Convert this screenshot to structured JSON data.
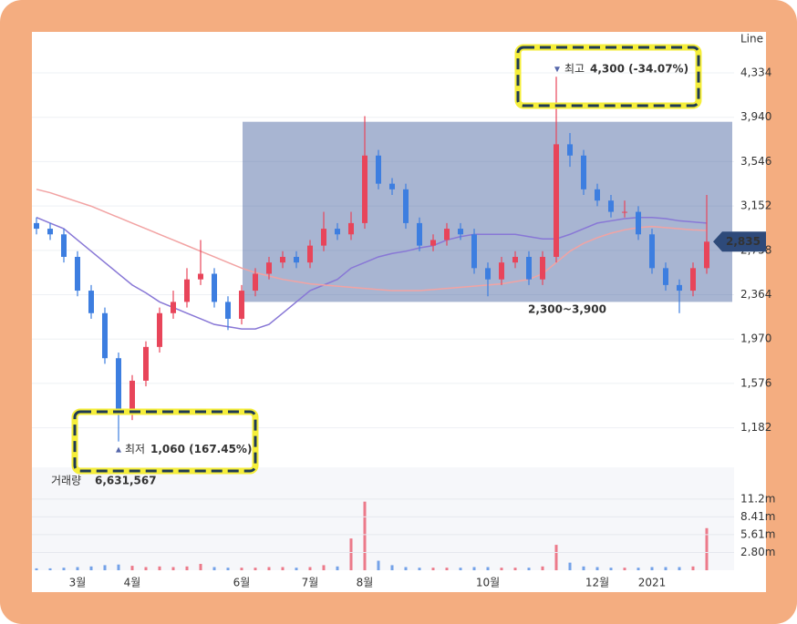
{
  "chart_data": {
    "type": "candlestick",
    "mode_label": "Line",
    "categories": [
      null,
      null,
      null,
      "3월",
      null,
      null,
      null,
      "4월",
      null,
      null,
      null,
      null,
      null,
      null,
      null,
      "6월",
      null,
      null,
      null,
      null,
      "7월",
      null,
      null,
      null,
      "8월",
      null,
      null,
      null,
      null,
      null,
      null,
      null,
      null,
      "10월",
      null,
      null,
      null,
      null,
      null,
      null,
      null,
      "12월",
      null,
      null,
      null,
      "2021",
      null,
      null,
      null,
      null
    ],
    "open": [
      3000,
      2950,
      2900,
      2700,
      2400,
      2200,
      1800,
      1300,
      1600,
      1900,
      2200,
      2300,
      2500,
      2550,
      2300,
      2150,
      2400,
      2550,
      2650,
      2700,
      2650,
      2800,
      2950,
      2900,
      3000,
      3600,
      3350,
      3300,
      3000,
      2800,
      2850,
      2950,
      2900,
      2600,
      2500,
      2650,
      2700,
      2500,
      2700,
      3700,
      3600,
      3300,
      3200,
      3100,
      3100,
      2900,
      2600,
      2450,
      2400,
      2600
    ],
    "high": [
      3050,
      3000,
      2950,
      2750,
      2450,
      2250,
      1850,
      1650,
      1950,
      2250,
      2400,
      2600,
      2850,
      2600,
      2350,
      2450,
      2600,
      2700,
      2750,
      2750,
      2850,
      3100,
      3000,
      3100,
      3950,
      3650,
      3400,
      3350,
      3050,
      2900,
      3000,
      3000,
      2950,
      2650,
      2700,
      2750,
      2750,
      2750,
      4300,
      3800,
      3650,
      3350,
      3250,
      3200,
      3150,
      2950,
      2650,
      2500,
      2650,
      3250
    ],
    "low": [
      2900,
      2850,
      2650,
      2350,
      2150,
      1750,
      1060,
      1250,
      1550,
      1850,
      2150,
      2250,
      2450,
      2250,
      2050,
      2100,
      2350,
      2500,
      2600,
      2600,
      2600,
      2750,
      2850,
      2850,
      2950,
      3300,
      3250,
      2950,
      2750,
      2750,
      2800,
      2850,
      2550,
      2350,
      2450,
      2600,
      2450,
      2450,
      2650,
      3500,
      3250,
      3150,
      3050,
      3050,
      2850,
      2550,
      2400,
      2200,
      2350,
      2550
    ],
    "close": [
      2950,
      2900,
      2700,
      2400,
      2200,
      1800,
      1300,
      1600,
      1900,
      2200,
      2300,
      2500,
      2550,
      2300,
      2150,
      2400,
      2550,
      2650,
      2700,
      2650,
      2800,
      2950,
      2900,
      3000,
      3600,
      3350,
      3300,
      3000,
      2800,
      2850,
      2950,
      2900,
      2600,
      2500,
      2650,
      2700,
      2500,
      2700,
      3700,
      3600,
      3300,
      3200,
      3100,
      3100,
      2900,
      2600,
      2450,
      2400,
      2600,
      2835
    ],
    "up_color": "#e8455a",
    "down_color": "#3d7ee0",
    "moving_averages": [
      {
        "color": "#8877d6",
        "values": [
          3050,
          3000,
          2950,
          2850,
          2750,
          2650,
          2550,
          2450,
          2380,
          2300,
          2250,
          2200,
          2150,
          2100,
          2080,
          2060,
          2060,
          2100,
          2200,
          2300,
          2400,
          2450,
          2500,
          2600,
          2650,
          2700,
          2730,
          2750,
          2780,
          2800,
          2850,
          2880,
          2900,
          2900,
          2900,
          2900,
          2880,
          2860,
          2860,
          2900,
          2950,
          3000,
          3020,
          3040,
          3050,
          3050,
          3040,
          3020,
          3010,
          3000
        ]
      },
      {
        "color": "#f2a3a3",
        "values": [
          3300,
          3270,
          3230,
          3190,
          3150,
          3100,
          3050,
          3000,
          2950,
          2900,
          2850,
          2800,
          2750,
          2700,
          2650,
          2600,
          2560,
          2530,
          2500,
          2480,
          2460,
          2450,
          2440,
          2430,
          2420,
          2410,
          2400,
          2400,
          2400,
          2410,
          2420,
          2430,
          2440,
          2450,
          2460,
          2480,
          2500,
          2550,
          2650,
          2750,
          2820,
          2870,
          2910,
          2940,
          2960,
          2970,
          2960,
          2950,
          2940,
          2935
        ]
      }
    ],
    "ylim": [
      855,
      4658
    ],
    "yticks": [
      {
        "value": 1182,
        "label": "1,182"
      },
      {
        "value": 1576,
        "label": "1,576"
      },
      {
        "value": 1970,
        "label": "1,970"
      },
      {
        "value": 2364,
        "label": "2,364"
      },
      {
        "value": 2758,
        "label": "2,758"
      },
      {
        "value": 3152,
        "label": "3,152"
      },
      {
        "value": 3546,
        "label": "3,546"
      },
      {
        "value": 3940,
        "label": "3,940"
      },
      {
        "value": 4334,
        "label": "4,334"
      }
    ],
    "grid": true,
    "high_marker": {
      "prefix": "최고",
      "value": 4300,
      "label": "4,300 (-34.07%)"
    },
    "low_marker": {
      "prefix": "최저",
      "value": 1060,
      "label": "1,060 (167.45%)"
    },
    "range_box": {
      "range": [
        2300,
        3900
      ],
      "label": "2,300~3,900",
      "color": "#3f5c9b"
    },
    "current_price": {
      "value": 2835,
      "label": "2,835"
    },
    "volume": {
      "title": "거래량",
      "current_label": "6,631,567",
      "values": [
        0.3,
        0.3,
        0.4,
        0.5,
        0.6,
        0.8,
        0.9,
        0.7,
        0.5,
        0.6,
        0.5,
        0.6,
        1.0,
        0.5,
        0.4,
        0.4,
        0.4,
        0.5,
        0.5,
        0.4,
        0.5,
        0.8,
        0.6,
        5.0,
        10.8,
        1.5,
        0.8,
        0.5,
        0.4,
        0.4,
        0.4,
        0.4,
        0.5,
        0.5,
        0.4,
        0.4,
        0.4,
        0.6,
        4.0,
        1.2,
        0.6,
        0.5,
        0.4,
        0.4,
        0.4,
        0.5,
        0.5,
        0.5,
        0.6,
        6.63
      ],
      "ylim": [
        0,
        16.2
      ],
      "yticks": [
        {
          "value": 2.8,
          "label": "2.80m"
        },
        {
          "value": 5.61,
          "label": "5.61m"
        },
        {
          "value": 8.41,
          "label": "8.41m"
        },
        {
          "value": 11.2,
          "label": "11.2m"
        }
      ]
    }
  }
}
